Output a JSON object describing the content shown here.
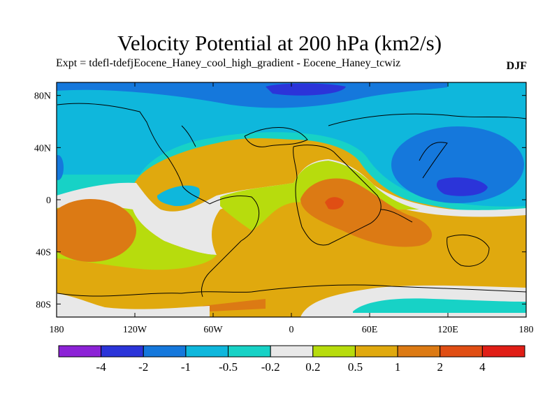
{
  "title": "Velocity Potential at 200 hPa (km2/s)",
  "subtitle": "Expt = tdefl-tdefjEocene_Haney_cool_high_gradient - Eocene_Haney_tcwiz",
  "season": "DJF",
  "x_axis": {
    "ticks": [
      {
        "lon": -180,
        "label": "180"
      },
      {
        "lon": -120,
        "label": "120W"
      },
      {
        "lon": -60,
        "label": "60W"
      },
      {
        "lon": 0,
        "label": "0"
      },
      {
        "lon": 60,
        "label": "60E"
      },
      {
        "lon": 120,
        "label": "120E"
      },
      {
        "lon": 180,
        "label": "180"
      }
    ]
  },
  "y_axis": {
    "ticks": [
      {
        "lat": 80,
        "label": "80N"
      },
      {
        "lat": 40,
        "label": "40N"
      },
      {
        "lat": 0,
        "label": "0"
      },
      {
        "lat": -40,
        "label": "40S"
      },
      {
        "lat": -80,
        "label": "80S"
      }
    ]
  },
  "colorbar": {
    "colors": [
      "#8c22d6",
      "#2b34d9",
      "#1578dc",
      "#0fb7dc",
      "#17d2c6",
      "#e8e8e8",
      "#b7dc0d",
      "#e0a90e",
      "#dc7a14",
      "#e04e14",
      "#e01e16"
    ],
    "labels": [
      "-4",
      "-2",
      "-1",
      "-0.5",
      "-0.2",
      "0.2",
      "0.5",
      "1",
      "2",
      "4"
    ]
  }
}
